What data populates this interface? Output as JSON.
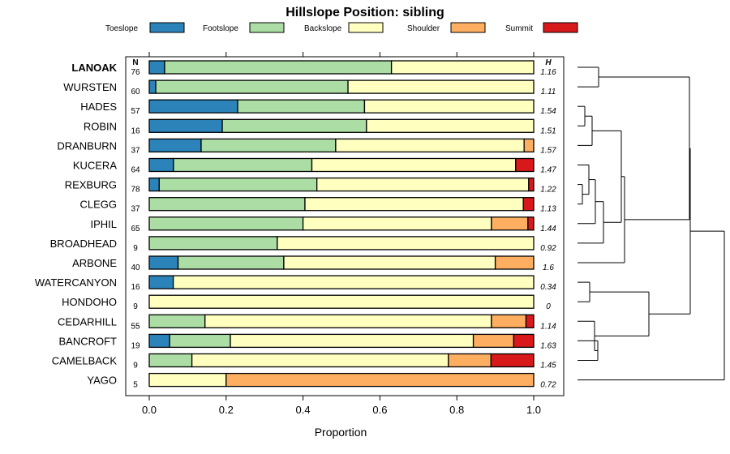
{
  "chart_data": {
    "type": "bar",
    "stacked": true,
    "orientation": "horizontal",
    "title": "Hillslope Position: sibling",
    "xlabel": "Proportion",
    "xlim": [
      0,
      1
    ],
    "xticks": [
      "0.0",
      "0.2",
      "0.4",
      "0.6",
      "0.8",
      "1.0"
    ],
    "col_n_label": "N",
    "col_h_label": "H",
    "legend_position": "top",
    "series": [
      {
        "name": "Toeslope",
        "color": "#2b83ba"
      },
      {
        "name": "Footslope",
        "color": "#abdda4"
      },
      {
        "name": "Backslope",
        "color": "#ffffbf"
      },
      {
        "name": "Shoulder",
        "color": "#fdae61"
      },
      {
        "name": "Summit",
        "color": "#d7191c"
      }
    ],
    "rows": [
      {
        "name": "LANOAK",
        "bold": true,
        "n": "76",
        "h": "1.16",
        "values": [
          0.04,
          0.59,
          0.37,
          0,
          0
        ]
      },
      {
        "name": "WURSTEN",
        "n": "60",
        "h": "1.11",
        "values": [
          0.017,
          0.5,
          0.483,
          0,
          0
        ]
      },
      {
        "name": "HADES",
        "n": "57",
        "h": "1.54",
        "values": [
          0.23,
          0.33,
          0.44,
          0,
          0
        ]
      },
      {
        "name": "ROBIN",
        "n": "16",
        "h": "1.51",
        "values": [
          0.19,
          0.375,
          0.435,
          0,
          0
        ]
      },
      {
        "name": "DRANBURN",
        "n": "37",
        "h": "1.57",
        "values": [
          0.135,
          0.35,
          0.49,
          0.025,
          0
        ]
      },
      {
        "name": "KUCERA",
        "n": "64",
        "h": "1.47",
        "values": [
          0.063,
          0.36,
          0.53,
          0,
          0.047
        ]
      },
      {
        "name": "REXBURG",
        "n": "78",
        "h": "1.22",
        "values": [
          0.026,
          0.41,
          0.551,
          0,
          0.013
        ]
      },
      {
        "name": "CLEGG",
        "n": "37",
        "h": "1.13",
        "values": [
          0,
          0.405,
          0.568,
          0,
          0.027
        ]
      },
      {
        "name": "IPHIL",
        "n": "65",
        "h": "1.44",
        "values": [
          0,
          0.4,
          0.49,
          0.095,
          0.015
        ]
      },
      {
        "name": "BROADHEAD",
        "n": "9",
        "h": "0.92",
        "values": [
          0,
          0.333,
          0.667,
          0,
          0
        ]
      },
      {
        "name": "ARBONE",
        "n": "40",
        "h": "1.6",
        "values": [
          0.075,
          0.275,
          0.55,
          0.1,
          0
        ]
      },
      {
        "name": "WATERCANYON",
        "n": "16",
        "h": "0.34",
        "values": [
          0.0625,
          0,
          0.9375,
          0,
          0
        ]
      },
      {
        "name": "HONDOHO",
        "n": "9",
        "h": "0",
        "values": [
          0,
          0,
          1.0,
          0,
          0
        ]
      },
      {
        "name": "CEDARHILL",
        "n": "55",
        "h": "1.14",
        "values": [
          0,
          0.145,
          0.745,
          0.09,
          0.02
        ]
      },
      {
        "name": "BANCROFT",
        "n": "19",
        "h": "1.63",
        "values": [
          0.053,
          0.158,
          0.632,
          0.105,
          0.052
        ]
      },
      {
        "name": "CAMELBACK",
        "n": "9",
        "h": "1.45",
        "values": [
          0,
          0.111,
          0.667,
          0.111,
          0.111
        ]
      },
      {
        "name": "YAGO",
        "n": "5",
        "h": "0.72",
        "values": [
          0,
          0,
          0.2,
          0.8,
          0
        ]
      }
    ]
  }
}
